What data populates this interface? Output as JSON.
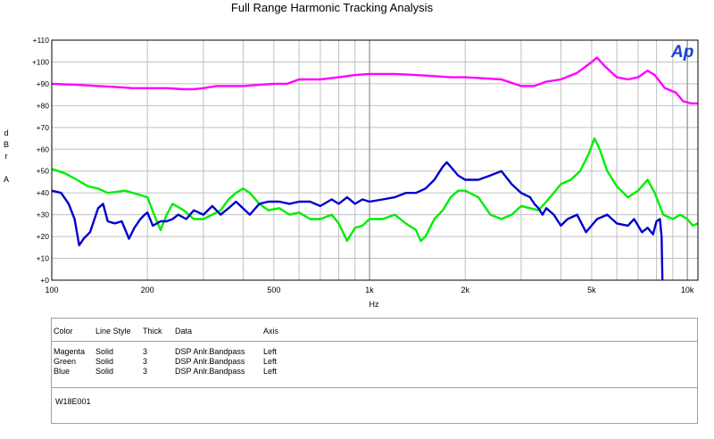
{
  "chart_data": {
    "type": "line",
    "title": "Full Range Harmonic Tracking Analysis",
    "xlabel": "Hz",
    "ylabel": [
      "d",
      "B",
      "r",
      "",
      "A"
    ],
    "xscale": "log",
    "xlim": [
      100,
      10800
    ],
    "ylim": [
      0,
      110
    ],
    "x_ticks": [
      {
        "v": 100,
        "label": "100"
      },
      {
        "v": 200,
        "label": "200"
      },
      {
        "v": 500,
        "label": "500"
      },
      {
        "v": 1000,
        "label": "1k"
      },
      {
        "v": 2000,
        "label": "2k"
      },
      {
        "v": 5000,
        "label": "5k"
      },
      {
        "v": 10000,
        "label": "10k"
      }
    ],
    "x_minor": [
      300,
      400,
      600,
      700,
      800,
      900,
      3000,
      4000,
      6000,
      7000,
      8000,
      9000
    ],
    "x_major_grid": [
      1000,
      10000
    ],
    "y_ticks": [
      {
        "v": 110,
        "label": "+110"
      },
      {
        "v": 100,
        "label": "+100"
      },
      {
        "v": 90,
        "label": "+90"
      },
      {
        "v": 80,
        "label": "+80"
      },
      {
        "v": 70,
        "label": "+70"
      },
      {
        "v": 60,
        "label": "+60"
      },
      {
        "v": 50,
        "label": "+50"
      },
      {
        "v": 40,
        "label": "+40"
      },
      {
        "v": 30,
        "label": "+30"
      },
      {
        "v": 20,
        "label": "+20"
      },
      {
        "v": 10,
        "label": "+10"
      },
      {
        "v": 0,
        "label": "+0"
      }
    ],
    "grid": true,
    "logo": "Ap",
    "series": [
      {
        "color": "#ff00ff",
        "points": [
          [
            100,
            90
          ],
          [
            120,
            89.5
          ],
          [
            140,
            89
          ],
          [
            160,
            88.5
          ],
          [
            180,
            88
          ],
          [
            200,
            88
          ],
          [
            230,
            88
          ],
          [
            260,
            87.5
          ],
          [
            280,
            87.5
          ],
          [
            300,
            88
          ],
          [
            330,
            89
          ],
          [
            360,
            89
          ],
          [
            400,
            89
          ],
          [
            450,
            89.5
          ],
          [
            500,
            90
          ],
          [
            550,
            90
          ],
          [
            600,
            92
          ],
          [
            700,
            92
          ],
          [
            800,
            93
          ],
          [
            900,
            94
          ],
          [
            1000,
            94.5
          ],
          [
            1200,
            94.5
          ],
          [
            1400,
            94
          ],
          [
            1600,
            93.5
          ],
          [
            1800,
            93
          ],
          [
            2000,
            93
          ],
          [
            2300,
            92.5
          ],
          [
            2600,
            92
          ],
          [
            3000,
            89
          ],
          [
            3300,
            89
          ],
          [
            3600,
            91
          ],
          [
            4000,
            92
          ],
          [
            4500,
            95
          ],
          [
            5000,
            100
          ],
          [
            5200,
            102
          ],
          [
            5500,
            98
          ],
          [
            6000,
            93
          ],
          [
            6500,
            92
          ],
          [
            7000,
            93
          ],
          [
            7500,
            96
          ],
          [
            7900,
            94
          ],
          [
            8500,
            88
          ],
          [
            9200,
            86
          ],
          [
            9700,
            82
          ],
          [
            10300,
            81
          ],
          [
            10800,
            81
          ]
        ]
      },
      {
        "color": "#00ee00",
        "points": [
          [
            100,
            51
          ],
          [
            110,
            49
          ],
          [
            120,
            46
          ],
          [
            130,
            43
          ],
          [
            140,
            42
          ],
          [
            150,
            40
          ],
          [
            160,
            40.5
          ],
          [
            170,
            41
          ],
          [
            180,
            40
          ],
          [
            190,
            39
          ],
          [
            200,
            38
          ],
          [
            210,
            30
          ],
          [
            220,
            23
          ],
          [
            230,
            30
          ],
          [
            240,
            35
          ],
          [
            260,
            32
          ],
          [
            280,
            28
          ],
          [
            300,
            28
          ],
          [
            320,
            30
          ],
          [
            340,
            32
          ],
          [
            360,
            37
          ],
          [
            380,
            40
          ],
          [
            400,
            42
          ],
          [
            420,
            40
          ],
          [
            450,
            35
          ],
          [
            480,
            32
          ],
          [
            520,
            33
          ],
          [
            560,
            30
          ],
          [
            600,
            31
          ],
          [
            650,
            28
          ],
          [
            700,
            28
          ],
          [
            760,
            30
          ],
          [
            800,
            26
          ],
          [
            850,
            18
          ],
          [
            900,
            24
          ],
          [
            950,
            25
          ],
          [
            1000,
            28
          ],
          [
            1100,
            28
          ],
          [
            1200,
            30
          ],
          [
            1300,
            26
          ],
          [
            1400,
            23
          ],
          [
            1450,
            18
          ],
          [
            1500,
            20
          ],
          [
            1600,
            28
          ],
          [
            1700,
            32
          ],
          [
            1800,
            38
          ],
          [
            1900,
            41
          ],
          [
            2000,
            41
          ],
          [
            2200,
            38
          ],
          [
            2400,
            30
          ],
          [
            2600,
            28
          ],
          [
            2800,
            30
          ],
          [
            3000,
            34
          ],
          [
            3200,
            33
          ],
          [
            3400,
            32
          ],
          [
            3600,
            36
          ],
          [
            3800,
            40
          ],
          [
            4000,
            44
          ],
          [
            4300,
            46
          ],
          [
            4600,
            50
          ],
          [
            4900,
            58
          ],
          [
            5100,
            65
          ],
          [
            5300,
            60
          ],
          [
            5600,
            50
          ],
          [
            6000,
            43
          ],
          [
            6500,
            38
          ],
          [
            7000,
            41
          ],
          [
            7500,
            46
          ],
          [
            7900,
            40
          ],
          [
            8400,
            30
          ],
          [
            9000,
            28
          ],
          [
            9500,
            30
          ],
          [
            10000,
            28
          ],
          [
            10400,
            25
          ],
          [
            10800,
            26
          ]
        ]
      },
      {
        "color": "#0000cc",
        "points": [
          [
            100,
            41
          ],
          [
            107,
            40
          ],
          [
            113,
            35
          ],
          [
            118,
            28
          ],
          [
            122,
            16
          ],
          [
            126,
            19
          ],
          [
            132,
            22
          ],
          [
            140,
            33
          ],
          [
            145,
            35
          ],
          [
            150,
            27
          ],
          [
            158,
            26
          ],
          [
            166,
            27
          ],
          [
            175,
            19
          ],
          [
            182,
            24
          ],
          [
            190,
            28
          ],
          [
            196,
            30
          ],
          [
            200,
            31
          ],
          [
            208,
            25
          ],
          [
            220,
            27
          ],
          [
            230,
            27
          ],
          [
            240,
            28
          ],
          [
            250,
            30
          ],
          [
            265,
            28
          ],
          [
            280,
            32
          ],
          [
            300,
            30
          ],
          [
            320,
            34
          ],
          [
            340,
            30
          ],
          [
            360,
            33
          ],
          [
            380,
            36
          ],
          [
            420,
            30
          ],
          [
            450,
            35
          ],
          [
            480,
            36
          ],
          [
            520,
            36
          ],
          [
            560,
            35
          ],
          [
            600,
            36
          ],
          [
            650,
            36
          ],
          [
            700,
            34
          ],
          [
            760,
            37
          ],
          [
            800,
            35
          ],
          [
            850,
            38
          ],
          [
            900,
            35
          ],
          [
            950,
            37
          ],
          [
            1000,
            36
          ],
          [
            1100,
            37
          ],
          [
            1200,
            38
          ],
          [
            1300,
            40
          ],
          [
            1400,
            40
          ],
          [
            1500,
            42
          ],
          [
            1600,
            46
          ],
          [
            1700,
            52
          ],
          [
            1750,
            54
          ],
          [
            1800,
            52
          ],
          [
            1900,
            48
          ],
          [
            2000,
            46
          ],
          [
            2200,
            46
          ],
          [
            2400,
            48
          ],
          [
            2600,
            50
          ],
          [
            2800,
            44
          ],
          [
            3000,
            40
          ],
          [
            3200,
            38
          ],
          [
            3300,
            35
          ],
          [
            3400,
            33
          ],
          [
            3500,
            30
          ],
          [
            3600,
            33
          ],
          [
            3800,
            30
          ],
          [
            4000,
            25
          ],
          [
            4200,
            28
          ],
          [
            4500,
            30
          ],
          [
            4800,
            22
          ],
          [
            5200,
            28
          ],
          [
            5600,
            30
          ],
          [
            6000,
            26
          ],
          [
            6500,
            25
          ],
          [
            6800,
            28
          ],
          [
            7200,
            22
          ],
          [
            7500,
            24
          ],
          [
            7800,
            21
          ],
          [
            8000,
            27
          ],
          [
            8200,
            28
          ],
          [
            8300,
            20
          ],
          [
            8350,
            0
          ]
        ]
      }
    ]
  },
  "legend": {
    "headers": [
      "Color",
      "Line Style",
      "Thick",
      "Data",
      "Axis"
    ],
    "rows": [
      [
        "Magenta",
        "Solid",
        "3",
        "DSP Anlr.Bandpass",
        "Left"
      ],
      [
        "Green",
        "Solid",
        "3",
        "DSP Anlr.Bandpass",
        "Left"
      ],
      [
        "Blue",
        "Solid",
        "3",
        "DSP Anlr.Bandpass",
        "Left"
      ]
    ]
  },
  "note": "W18E001"
}
